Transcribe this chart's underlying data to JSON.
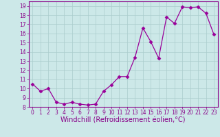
{
  "x": [
    0,
    1,
    2,
    3,
    4,
    5,
    6,
    7,
    8,
    9,
    10,
    11,
    12,
    13,
    14,
    15,
    16,
    17,
    18,
    19,
    20,
    21,
    22,
    23
  ],
  "y": [
    10.5,
    9.7,
    10.0,
    8.5,
    8.3,
    8.5,
    8.3,
    8.2,
    8.3,
    9.7,
    10.4,
    11.3,
    11.3,
    13.4,
    16.6,
    15.1,
    13.3,
    17.8,
    17.1,
    18.9,
    18.8,
    18.9,
    18.2,
    15.9
  ],
  "line_color": "#990099",
  "marker": "D",
  "marker_size": 2.5,
  "bg_color": "#cce8e8",
  "grid_color": "#aacccc",
  "xlabel": "Windchill (Refroidissement éolien,°C)",
  "ylabel": "",
  "title": "",
  "ylim": [
    8,
    19.5
  ],
  "yticks": [
    8,
    9,
    10,
    11,
    12,
    13,
    14,
    15,
    16,
    17,
    18,
    19
  ],
  "xticks": [
    0,
    1,
    2,
    3,
    4,
    5,
    6,
    7,
    8,
    9,
    10,
    11,
    12,
    13,
    14,
    15,
    16,
    17,
    18,
    19,
    20,
    21,
    22,
    23
  ],
  "font_color": "#880088",
  "tick_fontsize": 5.5,
  "xlabel_fontsize": 7,
  "spine_color": "#880088"
}
